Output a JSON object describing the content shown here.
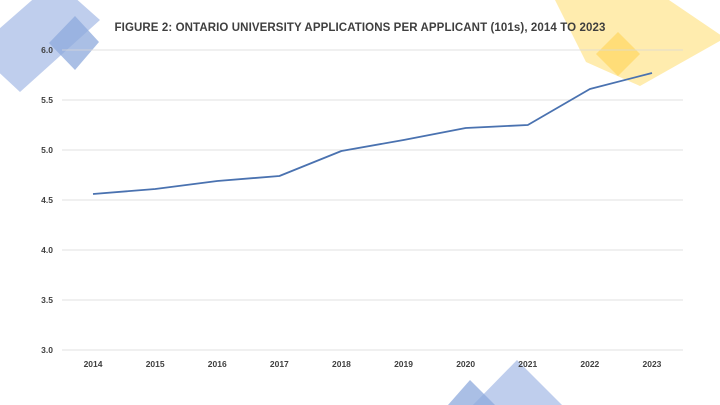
{
  "chart_data": {
    "type": "line",
    "title": "FIGURE 2: ONTARIO UNIVERSITY APPLICATIONS PER APPLICANT (101s), 2014 TO 2023",
    "xlabel": "",
    "ylabel": "",
    "categories": [
      "2014",
      "2015",
      "2016",
      "2017",
      "2018",
      "2019",
      "2020",
      "2021",
      "2022",
      "2023"
    ],
    "series": [
      {
        "values": [
          4.56,
          4.61,
          4.69,
          4.74,
          4.99,
          5.1,
          5.22,
          5.25,
          5.61,
          5.77
        ]
      }
    ],
    "ylim": [
      3.0,
      6.0
    ],
    "yticks": [
      "3.0",
      "3.5",
      "4.0",
      "4.5",
      "5.0",
      "5.5",
      "6.0"
    ],
    "grid": true,
    "legend": "none",
    "colors": {
      "line": "#4a72b0",
      "grid": "#d9d9d9",
      "text": "#3f3f3f"
    }
  },
  "decor": {
    "blue": "#b4c5ea",
    "blue_dark": "#8ea9dc",
    "yellow": "#ffe79a",
    "yellow_dark": "#ffd866"
  }
}
